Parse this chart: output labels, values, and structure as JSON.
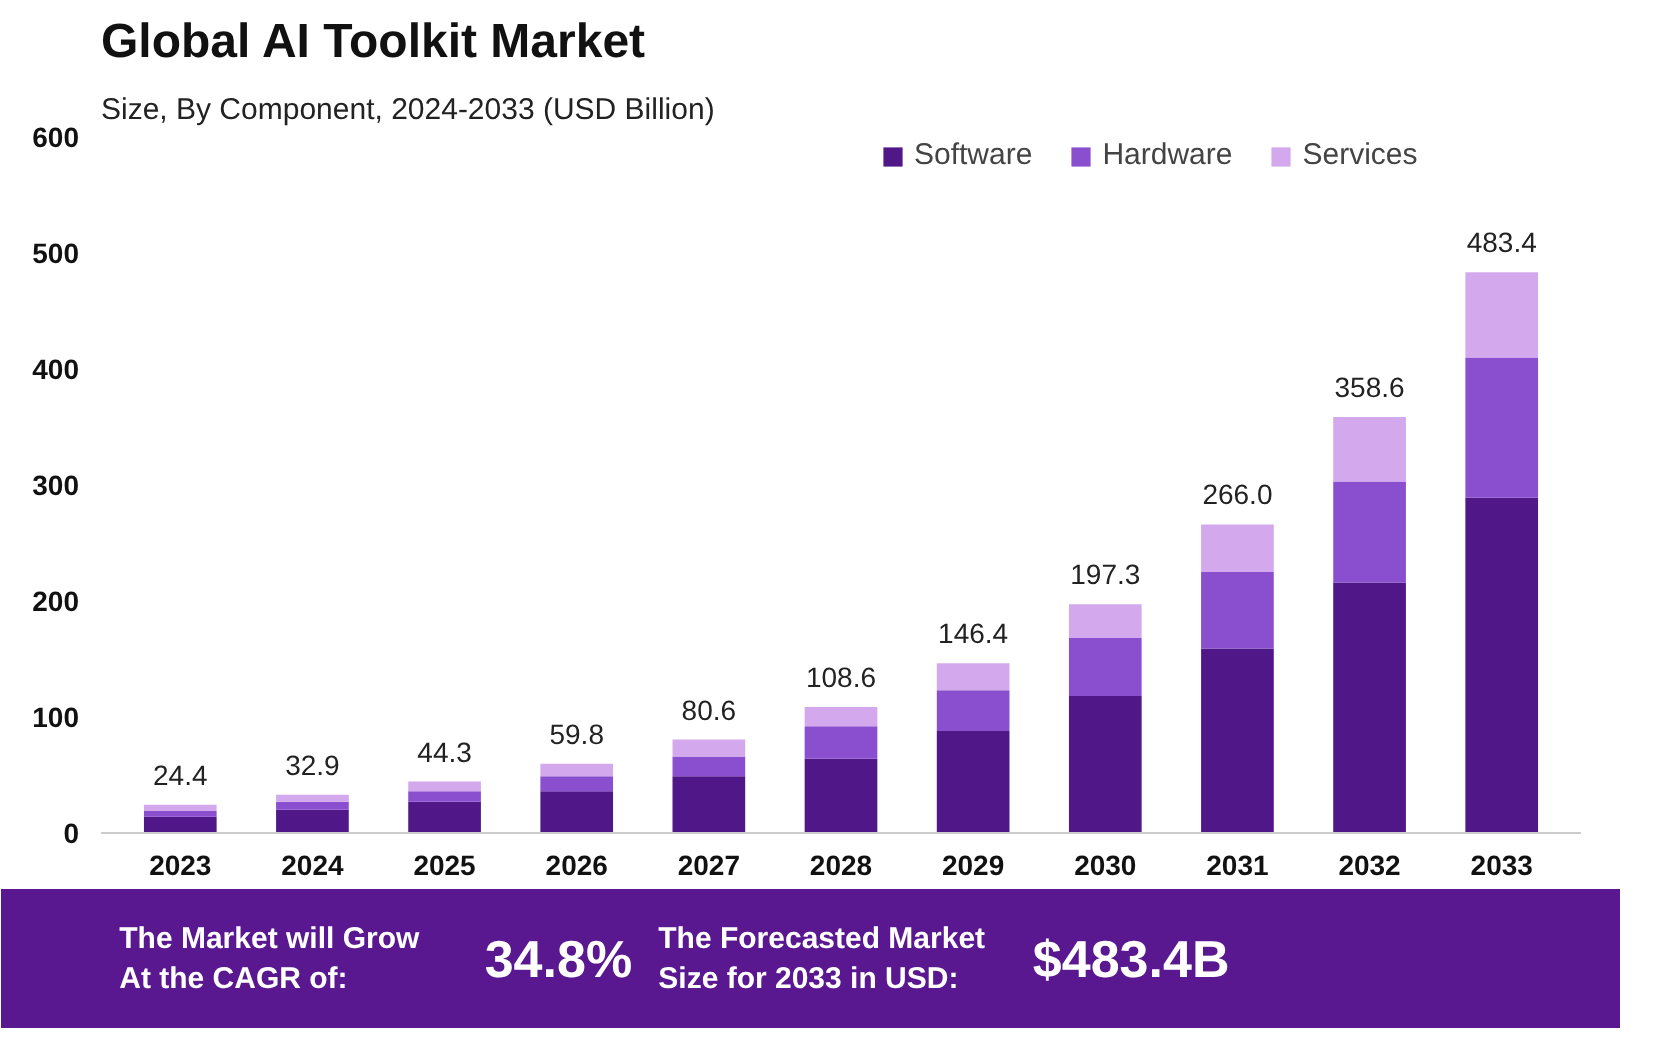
{
  "chart_data": {
    "type": "bar",
    "stacked": true,
    "title": "Global AI Toolkit Market",
    "subtitle": "Size, By Component, 2024-2033 (USD Billion)",
    "categories": [
      "2023",
      "2024",
      "2025",
      "2026",
      "2027",
      "2028",
      "2029",
      "2030",
      "2031",
      "2032",
      "2033"
    ],
    "series": [
      {
        "name": "Software",
        "color": "#4f1787",
        "values": [
          14,
          20,
          27,
          36,
          49,
          64,
          88,
          118,
          159,
          216,
          289
        ]
      },
      {
        "name": "Hardware",
        "color": "#8a4fcf",
        "values": [
          5,
          7,
          9,
          13,
          17,
          28,
          35,
          50,
          66,
          87,
          121
        ]
      },
      {
        "name": "Services",
        "color": "#d4a8ec",
        "values": [
          5.4,
          5.9,
          8.3,
          10.8,
          14.6,
          16.6,
          23.4,
          29.3,
          41,
          55.6,
          73.4
        ]
      }
    ],
    "totals": [
      "24.4",
      "32.9",
      "44.3",
      "59.8",
      "80.6",
      "108.6",
      "146.4",
      "197.3",
      "266.0",
      "358.6",
      "483.4"
    ],
    "ylim": [
      0,
      600
    ],
    "yticks": [
      0,
      100,
      200,
      300,
      400,
      500,
      600
    ],
    "grid": false,
    "legend": "top right",
    "annotations": [
      "The Market will Grow At the CAGR of:",
      "34.8%",
      "The Forecasted Market Size for 2033 in USD:",
      "$483.4B"
    ]
  }
}
